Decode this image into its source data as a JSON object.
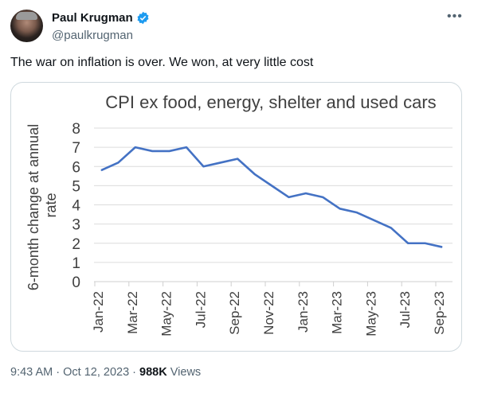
{
  "author": {
    "name": "Paul Krugman",
    "handle": "@paulkrugman",
    "verified": true
  },
  "icons": {
    "more": "more-horizontal-icon",
    "verified": "verified-badge-icon"
  },
  "tweet_text": "The war on inflation is over. We won, at very little cost",
  "footer": {
    "time": "9:43 AM",
    "date": "Oct 12, 2023",
    "views_count": "988K",
    "views_label": "Views",
    "sep": "·"
  },
  "colors": {
    "line": "#4472c4",
    "verified": "#1d9bf0"
  },
  "chart_data": {
    "type": "line",
    "title": "CPI ex food, energy, shelter and used cars",
    "xlabel": "",
    "ylabel": "6-month change at annual rate",
    "ylabel_lines": [
      "6-month change at annual",
      "rate"
    ],
    "ylim": [
      0,
      8
    ],
    "yticks": [
      "0",
      "1",
      "2",
      "3",
      "4",
      "5",
      "6",
      "7",
      "8"
    ],
    "grid": true,
    "x": [
      "Jan-22",
      "Feb-22",
      "Mar-22",
      "Apr-22",
      "May-22",
      "Jun-22",
      "Jul-22",
      "Aug-22",
      "Sep-22",
      "Oct-22",
      "Nov-22",
      "Dec-22",
      "Jan-23",
      "Feb-23",
      "Mar-23",
      "Apr-23",
      "May-23",
      "Jun-23",
      "Jul-23",
      "Aug-23",
      "Sep-23"
    ],
    "xtick_labels": [
      "Jan-22",
      "Mar-22",
      "May-22",
      "Jul-22",
      "Sep-22",
      "Nov-22",
      "Jan-23",
      "Mar-23",
      "May-23",
      "Jul-23",
      "Sep-23"
    ],
    "series": [
      {
        "name": "CPI ex food, energy, shelter and used cars",
        "values": [
          5.8,
          6.2,
          7.0,
          6.8,
          6.8,
          7.0,
          6.0,
          6.2,
          6.4,
          5.6,
          5.0,
          4.4,
          4.6,
          4.4,
          3.8,
          3.6,
          3.2,
          2.8,
          2.0,
          2.0,
          1.8
        ]
      }
    ]
  }
}
